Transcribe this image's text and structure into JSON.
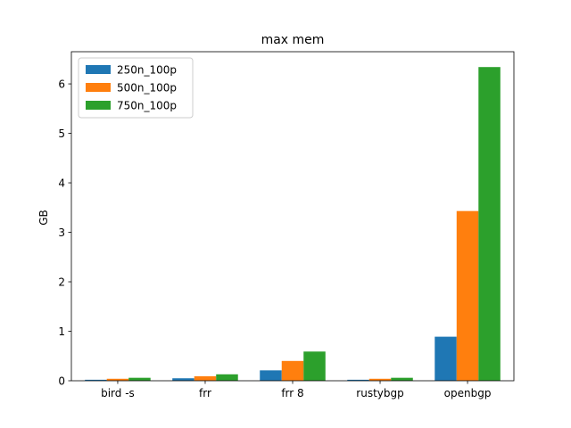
{
  "chart_data": {
    "type": "bar",
    "title": "max mem",
    "xlabel": "",
    "ylabel": "GB",
    "ylim": [
      0,
      6.65
    ],
    "yticks": [
      0,
      1,
      2,
      3,
      4,
      5,
      6
    ],
    "grid": false,
    "legend": "top-left",
    "categories": [
      "bird -s",
      "frr",
      "frr 8",
      "rustybgp",
      "openbgp"
    ],
    "series": [
      {
        "name": "250n_100p",
        "color": "#1f77b4",
        "values": [
          0.02,
          0.05,
          0.21,
          0.02,
          0.89
        ]
      },
      {
        "name": "500n_100p",
        "color": "#ff7f0e",
        "values": [
          0.04,
          0.09,
          0.4,
          0.04,
          3.43
        ]
      },
      {
        "name": "750n_100p",
        "color": "#2ca02c",
        "values": [
          0.06,
          0.13,
          0.59,
          0.06,
          6.34
        ]
      }
    ]
  }
}
